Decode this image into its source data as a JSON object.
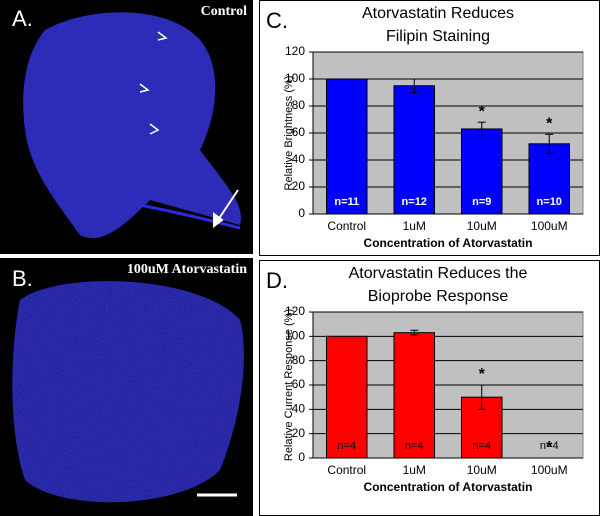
{
  "images": [
    {
      "label": "A.",
      "caption": "Control"
    },
    {
      "label": "B.",
      "caption": "100uM Atorvastatin"
    }
  ],
  "chart_data": [
    {
      "type": "bar",
      "panel_label": "C.",
      "title": [
        "Atorvastatin Reduces",
        "Filipin Staining"
      ],
      "x_label": "Concentration of Atorvastatin",
      "y_label": "Relative Brightness (%)",
      "categories": [
        "Control",
        "1uM",
        "10uM",
        "100uM"
      ],
      "values": [
        100,
        95,
        63,
        52
      ],
      "errors": [
        null,
        5,
        5,
        7
      ],
      "n_labels": [
        "n=11",
        "n=12",
        "n=9",
        "n=10"
      ],
      "n_label_color": "#ffffff",
      "significance": [
        null,
        null,
        "*",
        "*"
      ],
      "color": "#0000ff",
      "ylim": [
        0,
        120
      ],
      "yticks": [
        0,
        20,
        40,
        60,
        80,
        100,
        120
      ],
      "grid": true
    },
    {
      "type": "bar",
      "panel_label": "D.",
      "title": [
        "Atorvastatin Reduces the",
        "Bioprobe Response"
      ],
      "x_label": "Concentration of Atorvastatin",
      "y_label": "Relative Current Response (%)",
      "categories": [
        "Control",
        "1uM",
        "10uM",
        "100uM"
      ],
      "values": [
        100,
        103,
        50,
        0
      ],
      "errors": [
        null,
        2,
        10,
        null
      ],
      "n_labels": [
        "n=4",
        "n=4",
        "n=4",
        "n=4"
      ],
      "n_label_color": "#000000",
      "significance": [
        null,
        null,
        "*",
        "*"
      ],
      "color": "#ff0000",
      "ylim": [
        0,
        120
      ],
      "yticks": [
        0,
        20,
        40,
        60,
        80,
        100,
        120
      ],
      "grid": true
    }
  ]
}
